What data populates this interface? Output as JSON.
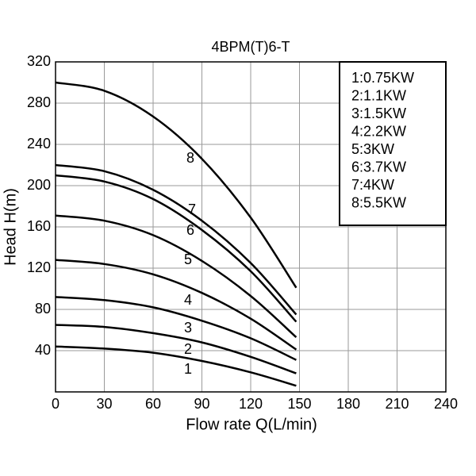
{
  "chart_data": {
    "type": "line",
    "title": "4BPM(T)6-T",
    "x_label": "Flow rate Q(L/min)",
    "y_label": "Head H(m)",
    "x": [
      0,
      30,
      60,
      90,
      120,
      148
    ],
    "xlim": [
      0,
      240
    ],
    "xticks": [
      0,
      30,
      60,
      90,
      120,
      150,
      180,
      210,
      240
    ],
    "ylim": [
      0,
      320
    ],
    "yticks": [
      40,
      80,
      120,
      160,
      200,
      240,
      280,
      320
    ],
    "grid": true,
    "legend": "upper right",
    "series": [
      {
        "name": "1:0.75KW",
        "label": "1",
        "color": "#000000",
        "values": [
          44,
          42,
          38,
          30,
          19,
          6
        ]
      },
      {
        "name": "2:1.1KW",
        "label": "2",
        "color": "#000000",
        "values": [
          65,
          63,
          57,
          48,
          34,
          18
        ]
      },
      {
        "name": "3:1.5KW",
        "label": "3",
        "color": "#000000",
        "values": [
          92,
          89,
          82,
          69,
          52,
          31
        ]
      },
      {
        "name": "4:2.2KW",
        "label": "4",
        "color": "#000000",
        "values": [
          128,
          124,
          114,
          96,
          71,
          41
        ]
      },
      {
        "name": "5:3KW",
        "label": "5",
        "color": "#000000",
        "values": [
          171,
          166,
          152,
          127,
          93,
          53
        ]
      },
      {
        "name": "6:3.7KW",
        "label": "6",
        "color": "#000000",
        "values": [
          210,
          204,
          187,
          157,
          117,
          68
        ]
      },
      {
        "name": "7:4KW",
        "label": "7",
        "color": "#000000",
        "values": [
          220,
          214,
          196,
          166,
          125,
          75
        ]
      },
      {
        "name": "8:5.5KW",
        "label": "8",
        "color": "#000000",
        "values": [
          300,
          292,
          267,
          226,
          169,
          101
        ]
      }
    ]
  }
}
